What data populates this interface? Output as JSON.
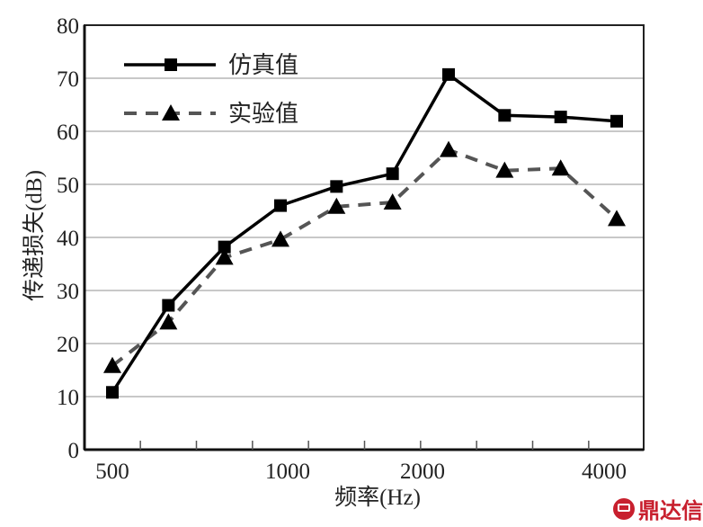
{
  "chart_data": {
    "type": "line",
    "title": "",
    "xlabel": "频率(Hz)",
    "ylabel": "传递损失(dB)",
    "ylim": [
      0,
      80
    ],
    "yticks": [
      0,
      10,
      20,
      30,
      40,
      50,
      60,
      70,
      80
    ],
    "xscale": "log",
    "xtick_labels": [
      "500",
      "1000",
      "2000",
      "4000"
    ],
    "x": [
      500,
      630,
      800,
      1000,
      1250,
      1600,
      2000,
      2500,
      3150,
      4000
    ],
    "grid": "horizontal",
    "legend_position": "upper-left",
    "series": [
      {
        "name": "仿真值",
        "marker": "square",
        "line": "solid",
        "color": "#000000",
        "values": [
          10.8,
          27.2,
          38.2,
          46.0,
          49.6,
          52.0,
          70.7,
          63.0,
          62.7,
          61.9
        ]
      },
      {
        "name": "实验值",
        "marker": "triangle",
        "line": "dashed",
        "color": "#555555",
        "values": [
          15.8,
          24.0,
          36.2,
          39.6,
          45.8,
          46.6,
          56.5,
          52.6,
          53.0,
          43.5
        ]
      }
    ]
  },
  "watermark": {
    "text": "鼎达信",
    "color": "#c8202e"
  }
}
